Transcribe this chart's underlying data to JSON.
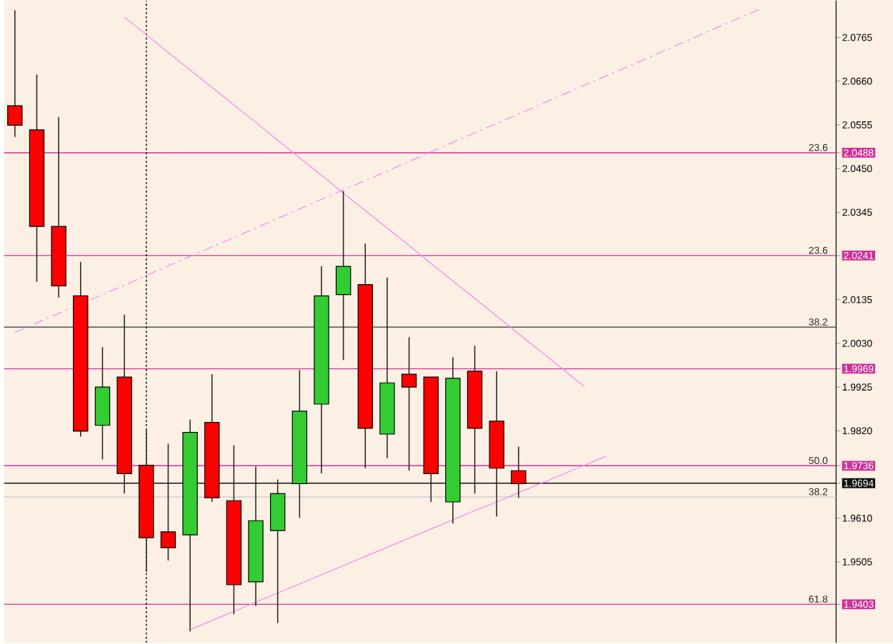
{
  "chart_data": {
    "type": "candlestick",
    "categories": [
      null,
      null,
      null,
      null,
      null,
      null,
      null,
      null,
      null,
      null,
      null,
      null,
      null,
      null,
      null,
      null,
      null,
      null,
      null,
      null,
      null,
      null,
      null,
      null,
      null,
      null,
      null,
      null,
      null,
      null,
      null,
      null,
      null,
      null,
      null,
      null,
      null,
      null
    ],
    "ohlc": [
      [
        2.0601,
        2.083,
        2.0526,
        2.0554
      ],
      [
        2.0543,
        2.0676,
        2.0178,
        2.0311
      ],
      [
        2.0311,
        2.0574,
        2.014,
        2.0168
      ],
      [
        2.0144,
        2.0226,
        1.9806,
        1.9819
      ],
      [
        1.9833,
        2.0021,
        1.9751,
        1.9925
      ],
      [
        1.9949,
        2.0099,
        1.9669,
        1.9717
      ],
      [
        1.9737,
        1.9823,
        1.9481,
        1.9563
      ],
      [
        1.9577,
        1.9789,
        1.9508,
        1.9539
      ],
      [
        1.957,
        1.9847,
        1.9338,
        1.9816
      ],
      [
        1.984,
        1.9956,
        1.9649,
        1.9659
      ],
      [
        1.9652,
        1.9785,
        1.9379,
        1.945
      ],
      [
        1.9457,
        1.9734,
        1.9399,
        1.9604
      ],
      [
        1.958,
        1.9703,
        1.9358,
        1.9669
      ],
      [
        1.9693,
        1.9966,
        1.9611,
        1.9867
      ],
      [
        1.9884,
        2.0215,
        1.9717,
        2.0144
      ],
      [
        2.0147,
        2.0396,
        1.999,
        2.0215
      ],
      [
        2.0171,
        2.027,
        1.973,
        1.9826
      ],
      [
        1.9812,
        2.0188,
        1.9754,
        1.9935
      ],
      [
        1.9956,
        2.0045,
        1.9724,
        1.9925
      ],
      [
        1.9949,
        1.9949,
        1.9649,
        1.9717
      ],
      [
        1.9649,
        1.9997,
        1.9597,
        1.9946
      ],
      [
        1.9963,
        2.0024,
        1.9669,
        1.9826
      ],
      [
        1.9843,
        1.9963,
        1.9614,
        1.973
      ],
      [
        1.9724,
        1.9782,
        1.9659,
        1.9693
      ],
      null,
      null,
      null,
      null,
      null,
      null,
      null,
      null,
      null,
      null,
      null,
      null,
      null,
      null
    ],
    "series": [
      {
        "type": "line",
        "color": "#ee88ee",
        "line_style": "solid",
        "values": [
          null,
          null,
          null,
          null,
          null,
          2.0814,
          2.0772,
          2.0729,
          2.0687,
          2.0645,
          2.0603,
          2.0561,
          2.0518,
          2.0476,
          2.0434,
          2.0391,
          2.0349,
          2.0307,
          2.0265,
          2.0222,
          2.018,
          2.0138,
          2.0096,
          2.0053,
          2.0011,
          1.9969,
          1.9926,
          null,
          null,
          null,
          null,
          null,
          null,
          null,
          null,
          null,
          null,
          null
        ]
      },
      {
        "type": "line",
        "color": "#ee88ee",
        "line_style": "solid",
        "values": [
          null,
          null,
          null,
          null,
          null,
          null,
          null,
          null,
          1.9342,
          1.9364,
          1.9386,
          1.9408,
          1.943,
          1.9452,
          1.9474,
          1.9496,
          1.9518,
          1.954,
          1.9562,
          1.9584,
          1.9606,
          1.9628,
          1.9649,
          1.9671,
          1.9693,
          1.9715,
          1.9737,
          1.9759,
          null,
          null,
          null,
          null,
          null,
          null,
          null,
          null,
          null,
          null
        ]
      },
      {
        "type": "line",
        "color": "#ee88ee",
        "line_style": "dashed",
        "values": [
          2.0056,
          2.0079,
          2.0102,
          null,
          2.0147,
          2.017,
          2.0193,
          2.0216,
          2.0239,
          2.0262,
          2.0284,
          2.0307,
          2.033,
          2.0353,
          2.0376,
          2.0399,
          2.0421,
          2.0444,
          2.0467,
          2.049,
          2.0513,
          2.0536,
          2.0558,
          2.0581,
          2.0604,
          2.0627,
          2.065,
          2.0673,
          2.0695,
          2.0718,
          2.0741,
          2.0764,
          2.0787,
          2.081,
          2.0833,
          null,
          null,
          null
        ]
      }
    ],
    "ylim": [
      1.931,
      2.0854
    ],
    "yticks": [
      {
        "value": 2.0765,
        "label": "2.0765"
      },
      {
        "value": 2.066,
        "label": "2.0660"
      },
      {
        "value": 2.0555,
        "label": "2.0555"
      },
      {
        "value": 2.0488,
        "label": "2.0488"
      },
      {
        "value": 2.045,
        "label": "2.0450"
      },
      {
        "value": 2.0345,
        "label": "2.0345"
      },
      {
        "value": 2.0241,
        "label": "2.0241"
      },
      {
        "value": 2.0135,
        "label": "2.0135"
      },
      {
        "value": 2.003,
        "label": "2.0030"
      },
      {
        "value": 1.9969,
        "label": "1.9969"
      },
      {
        "value": 1.9925,
        "label": "1.9925"
      },
      {
        "value": 1.982,
        "label": "1.9820"
      },
      {
        "value": 1.9736,
        "label": "1.9736"
      },
      {
        "value": 1.9694,
        "label": "1.9694"
      },
      {
        "value": 1.961,
        "label": "1.9610"
      },
      {
        "value": 1.9505,
        "label": "1.9505"
      },
      {
        "value": 1.9403,
        "label": "1.9403"
      }
    ],
    "ref_lines": [
      {
        "axis": "y",
        "value": 2.0488,
        "color": "#cc3399"
      },
      {
        "axis": "y",
        "value": 2.0241,
        "color": "#cc3399"
      },
      {
        "axis": "y",
        "value": 1.9969,
        "color": "#cc3399"
      },
      {
        "axis": "y",
        "value": 1.9736,
        "color": "#cc3399"
      },
      {
        "axis": "y",
        "value": 1.9403,
        "color": "#cc3399"
      },
      {
        "axis": "y",
        "value": 2.0069,
        "color": "#333333"
      },
      {
        "axis": "y",
        "value": 1.9694,
        "color": "#111111"
      },
      {
        "axis": "y",
        "value": 1.9661,
        "color": "#d0d0d0"
      }
    ],
    "annotations": [
      {
        "text": "23.6",
        "y": 2.0488
      },
      {
        "text": "38.2",
        "y": 2.0069
      },
      {
        "text": "50.0",
        "y": 1.9736
      },
      {
        "text": "61.8",
        "y": 1.9403
      },
      {
        "text": "23.6",
        "y": 2.0241
      },
      {
        "text": "38.2",
        "y": 1.9661
      }
    ]
  }
}
